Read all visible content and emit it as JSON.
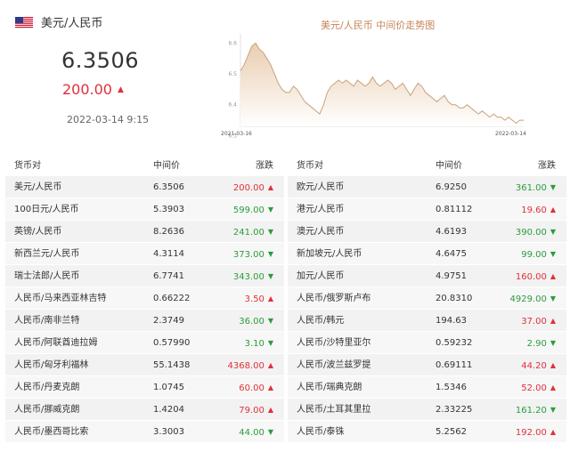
{
  "header": {
    "pair_title": "美元/人民币",
    "rate": "6.3506",
    "change": "200.00",
    "change_direction": "up",
    "timestamp": "2022-03-14 9:15",
    "flag_icon": "us-flag-icon"
  },
  "chart": {
    "title": "美元/人民币 中间价走势图",
    "start_label": "2021-03-16",
    "end_label": "2022-03-14",
    "y_tick_labels": [
      "6.6",
      "6.5",
      "6.4",
      "6.3"
    ],
    "watermark": "",
    "colors": {
      "line": "#c8a27a",
      "fill_top": "#e9cdb0",
      "fill_bottom": "#ffffff",
      "title": "#c8855a"
    }
  },
  "chart_data": {
    "type": "area",
    "title": "美元/人民币 中间价走势图",
    "x_start": "2021-03-16",
    "x_end": "2022-03-14",
    "ylim": [
      6.33,
      6.63
    ],
    "series": [
      {
        "values": [
          6.51,
          6.53,
          6.56,
          6.59,
          6.6,
          6.58,
          6.57,
          6.55,
          6.53,
          6.5,
          6.47,
          6.45,
          6.44,
          6.44,
          6.46,
          6.45,
          6.43,
          6.41,
          6.4,
          6.39,
          6.38,
          6.37,
          6.4,
          6.44,
          6.46,
          6.47,
          6.48,
          6.47,
          6.48,
          6.47,
          6.46,
          6.48,
          6.47,
          6.46,
          6.47,
          6.49,
          6.47,
          6.46,
          6.47,
          6.48,
          6.47,
          6.45,
          6.46,
          6.47,
          6.45,
          6.43,
          6.45,
          6.47,
          6.46,
          6.44,
          6.43,
          6.42,
          6.41,
          6.42,
          6.43,
          6.41,
          6.4,
          6.4,
          6.39,
          6.39,
          6.4,
          6.39,
          6.38,
          6.37,
          6.38,
          6.37,
          6.36,
          6.37,
          6.36,
          6.36,
          6.35,
          6.36,
          6.35,
          6.34,
          6.35,
          6.35
        ]
      }
    ],
    "grid": false
  },
  "table": {
    "headers": {
      "pair": "货币对",
      "mid": "中间价",
      "change": "涨跌"
    },
    "left": [
      {
        "pair": "美元/人民币",
        "mid": "6.3506",
        "change": "200.00",
        "dir": "up"
      },
      {
        "pair": "100日元/人民币",
        "mid": "5.3903",
        "change": "599.00",
        "dir": "down"
      },
      {
        "pair": "英镑/人民币",
        "mid": "8.2636",
        "change": "241.00",
        "dir": "down"
      },
      {
        "pair": "新西兰元/人民币",
        "mid": "4.3114",
        "change": "373.00",
        "dir": "down"
      },
      {
        "pair": "瑞士法郎/人民币",
        "mid": "6.7741",
        "change": "343.00",
        "dir": "down"
      },
      {
        "pair": "人民币/马来西亚林吉特",
        "mid": "0.66222",
        "change": "3.50",
        "dir": "up"
      },
      {
        "pair": "人民币/南非兰特",
        "mid": "2.3749",
        "change": "36.00",
        "dir": "down"
      },
      {
        "pair": "人民币/阿联酋迪拉姆",
        "mid": "0.57990",
        "change": "3.10",
        "dir": "down"
      },
      {
        "pair": "人民币/匈牙利福林",
        "mid": "55.1438",
        "change": "4368.00",
        "dir": "up"
      },
      {
        "pair": "人民币/丹麦克朗",
        "mid": "1.0745",
        "change": "60.00",
        "dir": "up"
      },
      {
        "pair": "人民币/挪威克朗",
        "mid": "1.4204",
        "change": "79.00",
        "dir": "up"
      },
      {
        "pair": "人民币/墨西哥比索",
        "mid": "3.3003",
        "change": "44.00",
        "dir": "down"
      }
    ],
    "right": [
      {
        "pair": "欧元/人民币",
        "mid": "6.9250",
        "change": "361.00",
        "dir": "down"
      },
      {
        "pair": "港元/人民币",
        "mid": "0.81112",
        "change": "19.60",
        "dir": "up"
      },
      {
        "pair": "澳元/人民币",
        "mid": "4.6193",
        "change": "390.00",
        "dir": "down"
      },
      {
        "pair": "新加坡元/人民币",
        "mid": "4.6475",
        "change": "99.00",
        "dir": "down"
      },
      {
        "pair": "加元/人民币",
        "mid": "4.9751",
        "change": "160.00",
        "dir": "up"
      },
      {
        "pair": "人民币/俄罗斯卢布",
        "mid": "20.8310",
        "change": "4929.00",
        "dir": "down"
      },
      {
        "pair": "人民币/韩元",
        "mid": "194.63",
        "change": "37.00",
        "dir": "up"
      },
      {
        "pair": "人民币/沙特里亚尔",
        "mid": "0.59232",
        "change": "2.90",
        "dir": "down"
      },
      {
        "pair": "人民币/波兰兹罗提",
        "mid": "0.69111",
        "change": "44.20",
        "dir": "up"
      },
      {
        "pair": "人民币/瑞典克朗",
        "mid": "1.5346",
        "change": "52.00",
        "dir": "up"
      },
      {
        "pair": "人民币/土耳其里拉",
        "mid": "2.33225",
        "change": "161.20",
        "dir": "down"
      },
      {
        "pair": "人民币/泰铢",
        "mid": "5.2562",
        "change": "192.00",
        "dir": "up"
      }
    ]
  },
  "symbols": {
    "up": "▲",
    "down": "▼"
  }
}
